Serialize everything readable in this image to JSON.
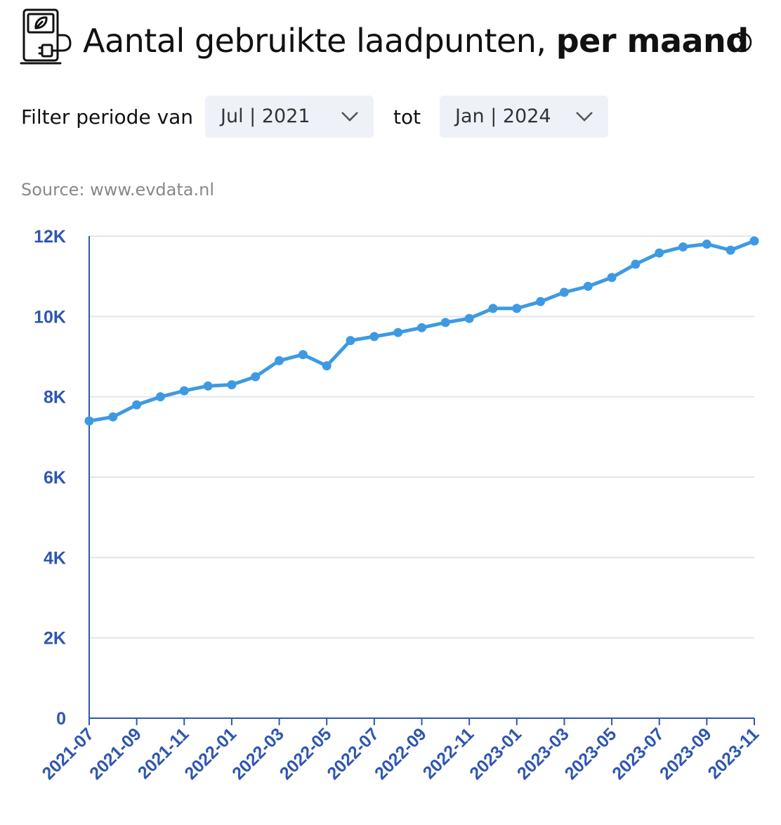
{
  "header": {
    "title_light": "Aantal gebruikte laadpunten,",
    "title_bold": "per maand",
    "icon": "ev-charger-icon",
    "info_icon": "info-icon"
  },
  "filter": {
    "label": "Filter periode van",
    "from_value": "Jul | 2021",
    "to_label": "tot",
    "to_value": "Jan | 2024"
  },
  "source": "Source: www.evdata.nl",
  "colors": {
    "line": "#3d9ae2",
    "axis": "#2f56b0",
    "grid": "#e3e5ee",
    "dropdown_bg": "#eef1f8"
  },
  "chart_data": {
    "type": "line",
    "title": "",
    "xlabel": "",
    "ylabel": "",
    "ylim": [
      0,
      12000
    ],
    "yticks": [
      0,
      2000,
      4000,
      6000,
      8000,
      10000,
      12000
    ],
    "ytick_labels": [
      "0",
      "2K",
      "4K",
      "6K",
      "8K",
      "10K",
      "12K"
    ],
    "xtick_labels": [
      "2021-07",
      "2021-09",
      "2021-11",
      "2022-01",
      "2022-03",
      "2022-05",
      "2022-07",
      "2022-09",
      "2022-11",
      "2023-01",
      "2023-03",
      "2023-05",
      "2023-07",
      "2023-09",
      "2023-11"
    ],
    "grid": true,
    "x": [
      "2021-07",
      "2021-08",
      "2021-09",
      "2021-10",
      "2021-11",
      "2021-12",
      "2022-01",
      "2022-02",
      "2022-03",
      "2022-04",
      "2022-05",
      "2022-06",
      "2022-07",
      "2022-08",
      "2022-09",
      "2022-10",
      "2022-11",
      "2022-12",
      "2023-01",
      "2023-02",
      "2023-03",
      "2023-04",
      "2023-05",
      "2023-06",
      "2023-07",
      "2023-08",
      "2023-09",
      "2023-10",
      "2023-11"
    ],
    "values": [
      7400,
      7500,
      7800,
      8000,
      8150,
      8270,
      8300,
      8500,
      8900,
      9050,
      8770,
      9400,
      9500,
      9600,
      9720,
      9850,
      9950,
      10200,
      10200,
      10370,
      10600,
      10750,
      10970,
      11300,
      11580,
      11730,
      11800,
      11650,
      11880
    ]
  }
}
